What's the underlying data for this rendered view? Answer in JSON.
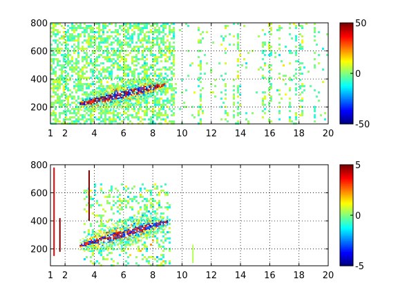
{
  "chart_data": [
    {
      "type": "heatmap",
      "title": "",
      "xlabel": "",
      "ylabel": "",
      "xlim": [
        1,
        20
      ],
      "ylim": [
        80,
        800
      ],
      "xticks": [
        1,
        2,
        4,
        6,
        8,
        10,
        12,
        14,
        16,
        18,
        20
      ],
      "yticks": [
        200,
        400,
        600,
        800
      ],
      "grid": true,
      "grid_style": "dotted",
      "colormap": "jet",
      "colorbar": {
        "min": -50,
        "max": 50,
        "ticks": [
          -50,
          0,
          50
        ]
      },
      "band": {
        "x_start": 3,
        "x_end": 8.8,
        "y_start": 225,
        "y_end": 365,
        "peak_value": 50,
        "low_value": -45
      },
      "scatter_x_range": [
        1,
        20
      ],
      "description_values": "dense noisy field near 0 for x 1-9, sparse column streaks near 0 for x 9-20"
    },
    {
      "type": "heatmap",
      "title": "",
      "xlabel": "",
      "ylabel": "",
      "xlim": [
        1,
        20
      ],
      "ylim": [
        80,
        800
      ],
      "xticks": [
        1,
        2,
        4,
        6,
        8,
        10,
        12,
        14,
        16,
        18,
        20
      ],
      "yticks": [
        200,
        400,
        600,
        800
      ],
      "grid": true,
      "grid_style": "dotted",
      "colormap": "jet",
      "colorbar": {
        "min": -5,
        "max": 5,
        "ticks": [
          -5,
          0,
          5
        ]
      },
      "band": {
        "x_start": 3,
        "x_end": 9,
        "y_start": 230,
        "y_end": 400,
        "peak_value": 5,
        "low_value": -4
      },
      "scatter_x_range": [
        1,
        11
      ],
      "streaks": [
        {
          "x": 1.2,
          "y_from": 150,
          "y_to": 780,
          "value": 4
        },
        {
          "x": 1.6,
          "y_from": 180,
          "y_to": 420,
          "value": 5
        },
        {
          "x": 3.6,
          "y_from": 400,
          "y_to": 760,
          "value": 5
        },
        {
          "x": 10.7,
          "y_from": 100,
          "y_to": 230,
          "value": 0.5
        }
      ]
    }
  ]
}
